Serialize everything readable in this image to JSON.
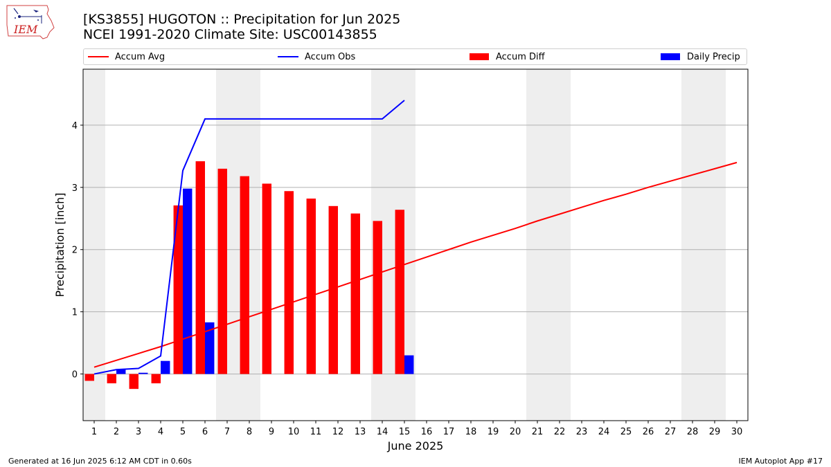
{
  "header": {
    "title_line1": "[KS3855] HUGOTON :: Precipitation for Jun 2025",
    "title_line2": "NCEI 1991-2020 Climate Site: USC00143855",
    "logo_text": "IEM"
  },
  "legend": {
    "accum_avg": "Accum Avg",
    "accum_obs": "Accum Obs",
    "accum_diff": "Accum Diff",
    "daily_precip": "Daily Precip"
  },
  "footer": {
    "generated": "Generated at 16 Jun 2025 6:12 AM CDT in 0.60s",
    "app": "IEM Autoplot App #17"
  },
  "colors": {
    "accum_avg": "#ff0000",
    "accum_obs": "#0000ff",
    "accum_diff": "#ff0000",
    "daily_precip": "#0000ff",
    "weekend_shade": "#eeeeee",
    "grid": "#b0b0b0"
  },
  "chart_data": {
    "type": "bar",
    "xlabel": "June 2025",
    "ylabel": "Precipitation [inch]",
    "xlim": [
      0.5,
      30.5
    ],
    "ylim": [
      -0.75,
      4.9
    ],
    "yticks": [
      0,
      1,
      2,
      3,
      4
    ],
    "grid": "horizontal",
    "legend_position": "top",
    "days": [
      1,
      2,
      3,
      4,
      5,
      6,
      7,
      8,
      9,
      10,
      11,
      12,
      13,
      14,
      15,
      16,
      17,
      18,
      19,
      20,
      21,
      22,
      23,
      24,
      25,
      26,
      27,
      28,
      29,
      30
    ],
    "weekend_days": [
      1,
      7,
      8,
      14,
      15,
      21,
      22,
      28,
      29
    ],
    "series": [
      {
        "name": "Accum Avg",
        "type": "line",
        "x": [
          1,
          2,
          3,
          4,
          5,
          6,
          7,
          8,
          9,
          10,
          11,
          12,
          13,
          14,
          15,
          16,
          17,
          18,
          19,
          20,
          21,
          22,
          23,
          24,
          25,
          26,
          27,
          28,
          29,
          30
        ],
        "values": [
          0.11,
          0.22,
          0.33,
          0.44,
          0.56,
          0.68,
          0.8,
          0.92,
          1.04,
          1.16,
          1.28,
          1.4,
          1.52,
          1.64,
          1.76,
          1.88,
          2.0,
          2.12,
          2.23,
          2.34,
          2.46,
          2.57,
          2.68,
          2.79,
          2.89,
          3.0,
          3.1,
          3.2,
          3.3,
          3.4
        ]
      },
      {
        "name": "Accum Obs",
        "type": "line",
        "x": [
          1,
          2,
          3,
          4,
          5,
          6,
          7,
          8,
          9,
          10,
          11,
          12,
          13,
          14,
          15
        ],
        "values": [
          0.0,
          0.07,
          0.09,
          0.29,
          3.27,
          4.1,
          4.1,
          4.1,
          4.1,
          4.1,
          4.1,
          4.1,
          4.1,
          4.1,
          4.4
        ]
      },
      {
        "name": "Accum Diff",
        "type": "bar",
        "x": [
          1,
          2,
          3,
          4,
          5,
          6,
          7,
          8,
          9,
          10,
          11,
          12,
          13,
          14,
          15
        ],
        "values": [
          -0.11,
          -0.15,
          -0.24,
          -0.15,
          2.71,
          3.42,
          3.3,
          3.18,
          3.06,
          2.94,
          2.82,
          2.7,
          2.58,
          2.46,
          2.64
        ]
      },
      {
        "name": "Daily Precip",
        "type": "bar",
        "x": [
          1,
          2,
          3,
          4,
          5,
          6,
          7,
          8,
          9,
          10,
          11,
          12,
          13,
          14,
          15
        ],
        "values": [
          0.0,
          0.07,
          0.02,
          0.21,
          2.98,
          0.83,
          0,
          0,
          0,
          0,
          0,
          0,
          0,
          0,
          0.3
        ]
      }
    ]
  }
}
